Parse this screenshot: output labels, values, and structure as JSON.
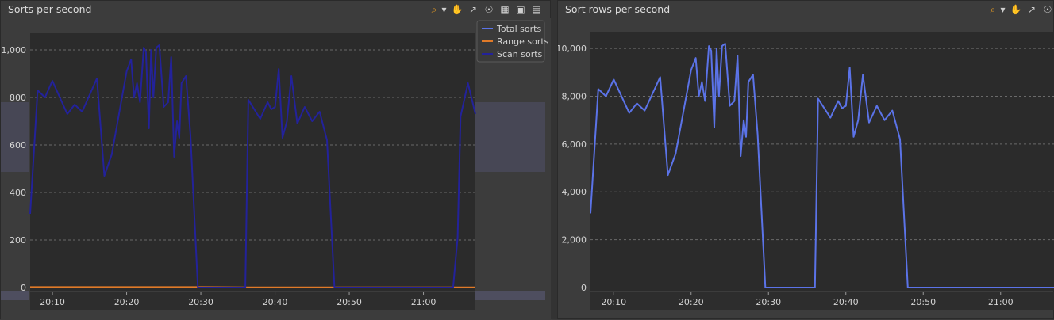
{
  "panels": [
    {
      "title": "Sorts per second",
      "toolbar_icons": [
        "zoom-icon",
        "dropdown-caret-icon",
        "pan-hand-icon",
        "chart-type-icon",
        "legend-toggle-icon",
        "export-table-icon",
        "save-icon",
        "print-icon"
      ]
    },
    {
      "title": "Sort rows per second",
      "toolbar_icons": [
        "zoom-icon",
        "dropdown-caret-icon",
        "pan-hand-icon",
        "chart-type-icon",
        "legend-toggle-icon"
      ]
    }
  ],
  "chart_data": [
    {
      "type": "line",
      "title": "Sorts per second",
      "x_unit": "time of day",
      "x_ticks": [
        "20:10",
        "20:20",
        "20:30",
        "20:40",
        "20:50",
        "21:00"
      ],
      "xlim": [
        "20:07",
        "21:07"
      ],
      "y_ticks": [
        "0",
        "200",
        "400",
        "600",
        "800",
        "1,000"
      ],
      "ylim": [
        0,
        1050
      ],
      "grid": "horizontal dashed",
      "legend_position": "top-right",
      "colors": {
        "Total sorts": "#5b73e8",
        "Range sorts": "#e07a28",
        "Scan sorts": "#23229a"
      },
      "series": [
        {
          "name": "Total sorts",
          "values": []
        },
        {
          "name": "Range sorts",
          "values": [
            [
              "20:07",
              2
            ],
            [
              "20:30",
              2
            ],
            [
              "20:36",
              1
            ],
            [
              "20:46",
              1
            ],
            [
              "21:07",
              1
            ]
          ]
        },
        {
          "name": "Scan sorts",
          "values": [
            [
              "20:07",
              310
            ],
            [
              "20:08",
              830
            ],
            [
              "20:09",
              800
            ],
            [
              "20:10",
              870
            ],
            [
              "20:12",
              730
            ],
            [
              "20:13",
              770
            ],
            [
              "20:14",
              740
            ],
            [
              "20:16",
              880
            ],
            [
              "20:17",
              470
            ],
            [
              "20:18",
              560
            ],
            [
              "20:20",
              910
            ],
            [
              "20:20.6",
              960
            ],
            [
              "20:21",
              800
            ],
            [
              "20:21.4",
              860
            ],
            [
              "20:21.8",
              780
            ],
            [
              "20:22.3",
              1010
            ],
            [
              "20:22.6",
              990
            ],
            [
              "20:23",
              670
            ],
            [
              "20:23.3",
              1000
            ],
            [
              "20:23.6",
              800
            ],
            [
              "20:24",
              1010
            ],
            [
              "20:24.4",
              1020
            ],
            [
              "20:25",
              760
            ],
            [
              "20:25.6",
              780
            ],
            [
              "20:26",
              970
            ],
            [
              "20:26.4",
              550
            ],
            [
              "20:26.8",
              700
            ],
            [
              "20:27.1",
              630
            ],
            [
              "20:27.4",
              860
            ],
            [
              "20:28",
              890
            ],
            [
              "20:28.6",
              640
            ],
            [
              "20:29.6",
              0
            ],
            [
              "20:36",
              0
            ],
            [
              "20:36.4",
              790
            ],
            [
              "20:38",
              710
            ],
            [
              "20:39",
              780
            ],
            [
              "20:39.5",
              750
            ],
            [
              "20:40",
              760
            ],
            [
              "20:40.5",
              920
            ],
            [
              "20:41",
              630
            ],
            [
              "20:41.6",
              700
            ],
            [
              "20:42.2",
              890
            ],
            [
              "20:43",
              690
            ],
            [
              "20:44",
              760
            ],
            [
              "20:45",
              700
            ],
            [
              "20:46",
              740
            ],
            [
              "20:47",
              620
            ],
            [
              "20:48",
              0
            ],
            [
              "21:04",
              0
            ],
            [
              "21:04.6",
              210
            ],
            [
              "21:05",
              720
            ],
            [
              "21:06",
              860
            ],
            [
              "21:07",
              730
            ]
          ]
        }
      ]
    },
    {
      "type": "line",
      "title": "Sort rows per second",
      "x_unit": "time of day",
      "x_ticks": [
        "20:10",
        "20:20",
        "20:30",
        "20:40",
        "20:50",
        "21:00"
      ],
      "xlim": [
        "20:07",
        "21:07"
      ],
      "y_ticks": [
        "0",
        "2,000",
        "4,000",
        "6,000",
        "8,000",
        "10,000"
      ],
      "ylim": [
        0,
        10500
      ],
      "grid": "horizontal dashed",
      "series": [
        {
          "name": "Sort rows",
          "values": [
            [
              "20:07",
              3100
            ],
            [
              "20:08",
              8300
            ],
            [
              "20:09",
              8000
            ],
            [
              "20:10",
              8700
            ],
            [
              "20:12",
              7300
            ],
            [
              "20:13",
              7700
            ],
            [
              "20:14",
              7400
            ],
            [
              "20:16",
              8800
            ],
            [
              "20:17",
              4700
            ],
            [
              "20:18",
              5600
            ],
            [
              "20:20",
              9100
            ],
            [
              "20:20.6",
              9600
            ],
            [
              "20:21",
              8000
            ],
            [
              "20:21.4",
              8600
            ],
            [
              "20:21.8",
              7800
            ],
            [
              "20:22.3",
              10100
            ],
            [
              "20:22.6",
              9900
            ],
            [
              "20:23",
              6700
            ],
            [
              "20:23.3",
              10000
            ],
            [
              "20:23.6",
              8000
            ],
            [
              "20:24",
              10100
            ],
            [
              "20:24.4",
              10200
            ],
            [
              "20:25",
              7600
            ],
            [
              "20:25.6",
              7800
            ],
            [
              "20:26",
              9700
            ],
            [
              "20:26.4",
              5500
            ],
            [
              "20:26.8",
              7000
            ],
            [
              "20:27.1",
              6300
            ],
            [
              "20:27.4",
              8600
            ],
            [
              "20:28",
              8900
            ],
            [
              "20:28.6",
              6400
            ],
            [
              "20:29.6",
              0
            ],
            [
              "20:36",
              0
            ],
            [
              "20:36.4",
              7900
            ],
            [
              "20:38",
              7100
            ],
            [
              "20:39",
              7800
            ],
            [
              "20:39.5",
              7500
            ],
            [
              "20:40",
              7600
            ],
            [
              "20:40.5",
              9200
            ],
            [
              "20:41",
              6300
            ],
            [
              "20:41.6",
              7000
            ],
            [
              "20:42.2",
              8900
            ],
            [
              "20:43",
              6900
            ],
            [
              "20:44",
              7600
            ],
            [
              "20:45",
              7000
            ],
            [
              "20:46",
              7400
            ],
            [
              "20:47",
              6200
            ],
            [
              "20:48",
              0
            ],
            [
              "21:07",
              0
            ]
          ]
        }
      ]
    }
  ]
}
